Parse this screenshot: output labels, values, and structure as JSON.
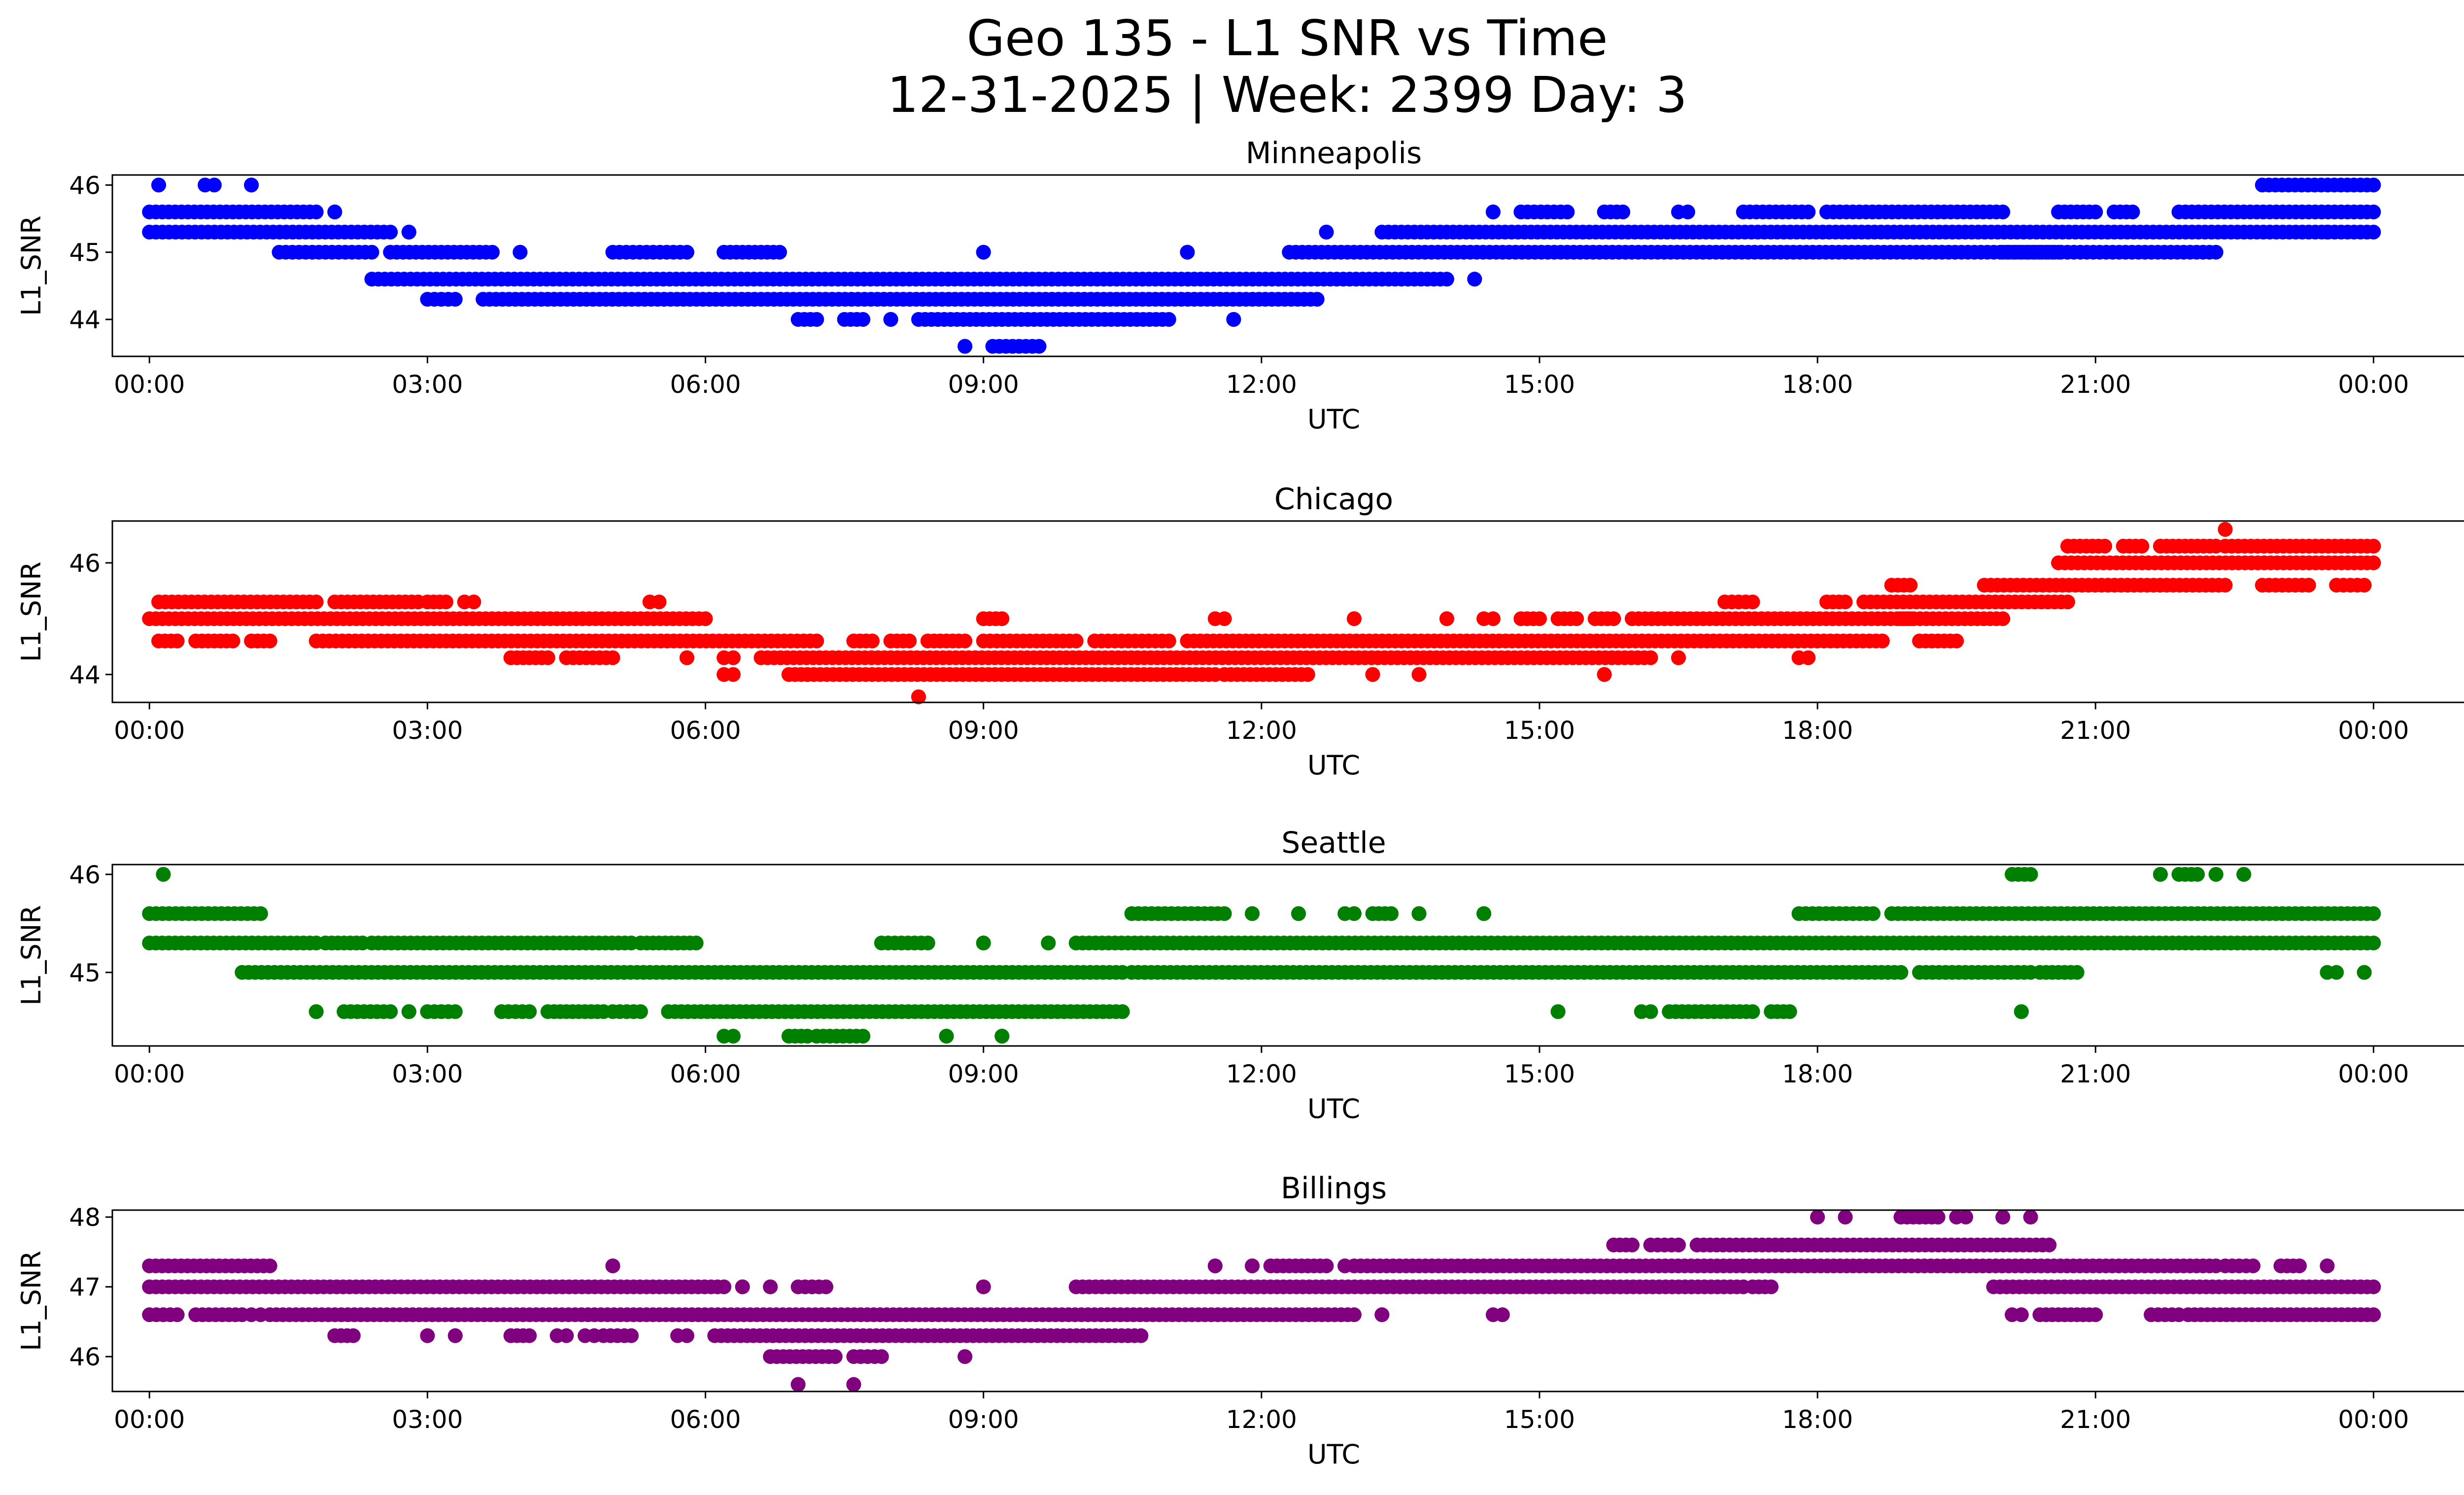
{
  "chart_data": {
    "type": "scatter",
    "title_line1": "Geo 135 - L1 SNR vs Time",
    "title_line2": "12-31-2025 | Week: 2399 Day: 3",
    "x_axis": {
      "label": "UTC",
      "range_hours": [
        -0.4,
        25.96
      ],
      "ticks": [
        0,
        3,
        6,
        9,
        12,
        15,
        18,
        21,
        24
      ],
      "tick_labels": [
        "00:00",
        "03:00",
        "06:00",
        "09:00",
        "12:00",
        "15:00",
        "18:00",
        "21:00",
        "00:00"
      ]
    },
    "ylabel": "L1_SNR",
    "panels": [
      {
        "title": "Minneapolis",
        "color": "#0000ff",
        "ylim": [
          43.45,
          46.15
        ],
        "yticks": [
          44,
          45,
          46
        ],
        "ytick_labels": [
          "44",
          "45",
          "46"
        ],
        "bands": [
          {
            "y": 45.6,
            "runs": [
              [
                0.0,
                1.8
              ],
              [
                2.0,
                2.0
              ],
              [
                14.5,
                14.5
              ],
              [
                14.8,
                15.3
              ],
              [
                15.7,
                15.9
              ],
              [
                16.5,
                16.6
              ],
              [
                17.2,
                17.9
              ],
              [
                18.1,
                20.0
              ],
              [
                20.6,
                21.0
              ],
              [
                21.2,
                21.4
              ],
              [
                21.9,
                24.0
              ]
            ]
          },
          {
            "y": 45.3,
            "runs": [
              [
                0.0,
                2.6
              ],
              [
                2.8,
                2.8
              ],
              [
                13.3,
                24.0
              ]
            ]
          },
          {
            "y": 45.0,
            "runs": [
              [
                1.4,
                2.4
              ],
              [
                2.6,
                3.7
              ],
              [
                4.0,
                4.0
              ],
              [
                5.0,
                5.8
              ],
              [
                6.2,
                6.8
              ],
              [
                9.0,
                9.0
              ],
              [
                11.2,
                11.2
              ],
              [
                12.3,
                20.6
              ],
              [
                20.0,
                22.3
              ]
            ]
          },
          {
            "y": 44.6,
            "runs": [
              [
                2.4,
                14.0
              ],
              [
                14.3,
                14.3
              ]
            ]
          },
          {
            "y": 44.3,
            "runs": [
              [
                3.0,
                3.3
              ],
              [
                3.6,
                12.6
              ]
            ]
          },
          {
            "y": 44.0,
            "runs": [
              [
                7.0,
                7.2
              ],
              [
                7.5,
                7.7
              ],
              [
                8.0,
                8.0
              ],
              [
                8.3,
                11.0
              ],
              [
                11.7,
                11.7
              ]
            ]
          },
          {
            "y": 43.6,
            "runs": [
              [
                8.8,
                8.8
              ],
              [
                9.1,
                9.6
              ]
            ]
          },
          {
            "y": 46.0,
            "runs": [
              [
                0.1,
                0.1
              ],
              [
                0.6,
                0.7
              ],
              [
                1.1,
                1.1
              ],
              [
                22.8,
                24.0
              ]
            ]
          },
          {
            "y": 45.3,
            "runs": [
              [
                12.7,
                12.7
              ],
              [
                23.5,
                23.5
              ]
            ]
          }
        ]
      },
      {
        "title": "Chicago",
        "color": "#ff0000",
        "ylim": [
          43.5,
          46.75
        ],
        "yticks": [
          44,
          46
        ],
        "ytick_labels": [
          "44",
          "46"
        ],
        "bands": [
          {
            "y": 46.6,
            "runs": [
              [
                22.4,
                22.4
              ]
            ]
          },
          {
            "y": 46.3,
            "runs": [
              [
                20.7,
                21.1
              ],
              [
                21.3,
                21.5
              ],
              [
                21.7,
                22.3
              ],
              [
                22.4,
                24.0
              ]
            ]
          },
          {
            "y": 46.0,
            "runs": [
              [
                20.6,
                24.0
              ]
            ]
          },
          {
            "y": 45.6,
            "runs": [
              [
                18.8,
                19.0
              ],
              [
                19.8,
                22.4
              ],
              [
                22.8,
                23.3
              ],
              [
                23.6,
                23.9
              ]
            ]
          },
          {
            "y": 45.3,
            "runs": [
              [
                0.1,
                1.8
              ],
              [
                2.0,
                2.9
              ],
              [
                3.0,
                3.2
              ],
              [
                3.4,
                3.5
              ],
              [
                5.4,
                5.5
              ],
              [
                17.0,
                17.3
              ],
              [
                18.1,
                18.3
              ],
              [
                18.5,
                20.7
              ]
            ]
          },
          {
            "y": 45.0,
            "runs": [
              [
                0.0,
                6.0
              ],
              [
                9.0,
                9.2
              ],
              [
                11.5,
                11.6
              ],
              [
                13.0,
                13.0
              ],
              [
                14.0,
                14.0
              ],
              [
                14.4,
                14.5
              ],
              [
                14.8,
                15.0
              ],
              [
                15.2,
                15.4
              ],
              [
                15.6,
                15.8
              ],
              [
                16.0,
                19.0
              ],
              [
                18.9,
                20.0
              ]
            ]
          },
          {
            "y": 44.6,
            "runs": [
              [
                0.1,
                0.3
              ],
              [
                0.5,
                0.9
              ],
              [
                1.1,
                1.3
              ],
              [
                1.8,
                7.2
              ],
              [
                7.6,
                7.8
              ],
              [
                8.0,
                8.2
              ],
              [
                8.4,
                8.8
              ],
              [
                9.0,
                10.0
              ],
              [
                10.2,
                11.0
              ],
              [
                11.2,
                18.7
              ],
              [
                19.1,
                19.5
              ]
            ]
          },
          {
            "y": 44.3,
            "runs": [
              [
                3.9,
                4.3
              ],
              [
                4.5,
                5.0
              ],
              [
                5.8,
                5.8
              ],
              [
                6.2,
                6.3
              ],
              [
                6.6,
                16.2
              ],
              [
                16.5,
                16.5
              ],
              [
                17.8,
                17.9
              ]
            ]
          },
          {
            "y": 44.0,
            "runs": [
              [
                6.2,
                6.3
              ],
              [
                6.9,
                7.1
              ],
              [
                7.1,
                11.5
              ],
              [
                11.6,
                12.5
              ],
              [
                13.2,
                13.2
              ],
              [
                13.7,
                13.7
              ],
              [
                15.7,
                15.7
              ]
            ]
          },
          {
            "y": 43.6,
            "runs": [
              [
                8.3,
                8.3
              ]
            ]
          }
        ]
      },
      {
        "title": "Seattle",
        "color": "#008000",
        "ylim": [
          44.25,
          46.1
        ],
        "yticks": [
          45,
          46
        ],
        "ytick_labels": [
          "45",
          "46"
        ],
        "bands": [
          {
            "y": 46.0,
            "runs": [
              [
                0.15,
                0.15
              ],
              [
                20.1,
                20.3
              ],
              [
                21.7,
                21.7
              ],
              [
                21.9,
                22.1
              ],
              [
                22.3,
                22.3
              ],
              [
                22.6,
                22.6
              ]
            ]
          },
          {
            "y": 45.6,
            "runs": [
              [
                0.0,
                1.2
              ],
              [
                10.6,
                11.6
              ],
              [
                11.9,
                11.9
              ],
              [
                12.4,
                12.4
              ],
              [
                12.9,
                13.0
              ],
              [
                13.2,
                13.4
              ],
              [
                13.7,
                13.7
              ],
              [
                14.4,
                14.4
              ],
              [
                17.8,
                18.6
              ],
              [
                18.8,
                24.0
              ]
            ]
          },
          {
            "y": 45.3,
            "runs": [
              [
                0.0,
                1.8
              ],
              [
                1.9,
                2.3
              ],
              [
                2.4,
                5.2
              ],
              [
                5.3,
                5.9
              ],
              [
                7.9,
                8.4
              ],
              [
                9.0,
                9.0
              ],
              [
                9.7,
                9.7
              ],
              [
                10.0,
                24.0
              ]
            ]
          },
          {
            "y": 45.0,
            "runs": [
              [
                1.0,
                10.5
              ],
              [
                10.6,
                18.9
              ],
              [
                19.1,
                20.3
              ],
              [
                20.4,
                20.8
              ],
              [
                23.5,
                23.6
              ],
              [
                23.9,
                23.9
              ]
            ]
          },
          {
            "y": 44.6,
            "runs": [
              [
                1.8,
                1.8
              ],
              [
                2.1,
                2.6
              ],
              [
                2.8,
                2.8
              ],
              [
                3.0,
                3.3
              ],
              [
                3.8,
                4.1
              ],
              [
                4.3,
                4.9
              ],
              [
                5.0,
                5.3
              ],
              [
                5.6,
                10.5
              ],
              [
                15.2,
                15.2
              ],
              [
                16.1,
                16.2
              ],
              [
                16.4,
                17.3
              ],
              [
                17.5,
                17.7
              ],
              [
                20.2,
                20.2
              ]
            ]
          },
          {
            "y": 44.35,
            "runs": [
              [
                6.2,
                6.3
              ],
              [
                6.9,
                7.1
              ],
              [
                7.2,
                7.7
              ],
              [
                8.6,
                8.6
              ],
              [
                9.2,
                9.2
              ]
            ]
          }
        ]
      },
      {
        "title": "Billings",
        "color": "#800080",
        "ylim": [
          45.5,
          48.1
        ],
        "yticks": [
          46,
          47,
          48
        ],
        "ytick_labels": [
          "46",
          "47",
          "48"
        ],
        "bands": [
          {
            "y": 48.0,
            "runs": [
              [
                18.0,
                18.0
              ],
              [
                18.3,
                18.3
              ],
              [
                18.9,
                19.3
              ],
              [
                19.5,
                19.6
              ],
              [
                20.0,
                20.0
              ],
              [
                20.3,
                20.3
              ]
            ]
          },
          {
            "y": 47.6,
            "runs": [
              [
                15.8,
                16.0
              ],
              [
                16.2,
                16.5
              ],
              [
                16.7,
                20.5
              ]
            ]
          },
          {
            "y": 47.3,
            "runs": [
              [
                0.0,
                1.3
              ],
              [
                5.0,
                5.0
              ],
              [
                11.5,
                11.5
              ],
              [
                11.9,
                11.9
              ],
              [
                12.1,
                12.7
              ],
              [
                12.9,
                12.9
              ],
              [
                13.0,
                22.3
              ],
              [
                22.4,
                22.7
              ],
              [
                23.0,
                23.2
              ],
              [
                23.5,
                23.5
              ]
            ]
          },
          {
            "y": 47.0,
            "runs": [
              [
                0.0,
                6.2
              ],
              [
                6.4,
                6.4
              ],
              [
                6.7,
                6.7
              ],
              [
                7.0,
                7.3
              ],
              [
                9.0,
                9.0
              ],
              [
                10.0,
                17.2
              ],
              [
                17.3,
                17.5
              ],
              [
                19.9,
                24.0
              ]
            ]
          },
          {
            "y": 46.6,
            "runs": [
              [
                0.0,
                0.3
              ],
              [
                0.5,
                1.0
              ],
              [
                1.1,
                1.2
              ],
              [
                1.3,
                13.0
              ],
              [
                13.3,
                13.3
              ],
              [
                14.5,
                14.6
              ],
              [
                20.1,
                20.2
              ],
              [
                20.4,
                21.0
              ],
              [
                21.6,
                21.9
              ],
              [
                22.0,
                24.0
              ]
            ]
          },
          {
            "y": 46.3,
            "runs": [
              [
                2.0,
                2.2
              ],
              [
                3.0,
                3.0
              ],
              [
                3.3,
                3.3
              ],
              [
                3.9,
                4.1
              ],
              [
                4.4,
                4.5
              ],
              [
                4.7,
                4.8
              ],
              [
                4.9,
                5.2
              ],
              [
                5.7,
                5.8
              ],
              [
                6.1,
                10.7
              ]
            ]
          },
          {
            "y": 46.0,
            "runs": [
              [
                6.7,
                7.4
              ],
              [
                7.6,
                7.9
              ],
              [
                8.8,
                8.8
              ]
            ]
          },
          {
            "y": 45.6,
            "runs": [
              [
                7.0,
                7.0
              ],
              [
                7.6,
                7.6
              ]
            ]
          }
        ]
      }
    ]
  }
}
